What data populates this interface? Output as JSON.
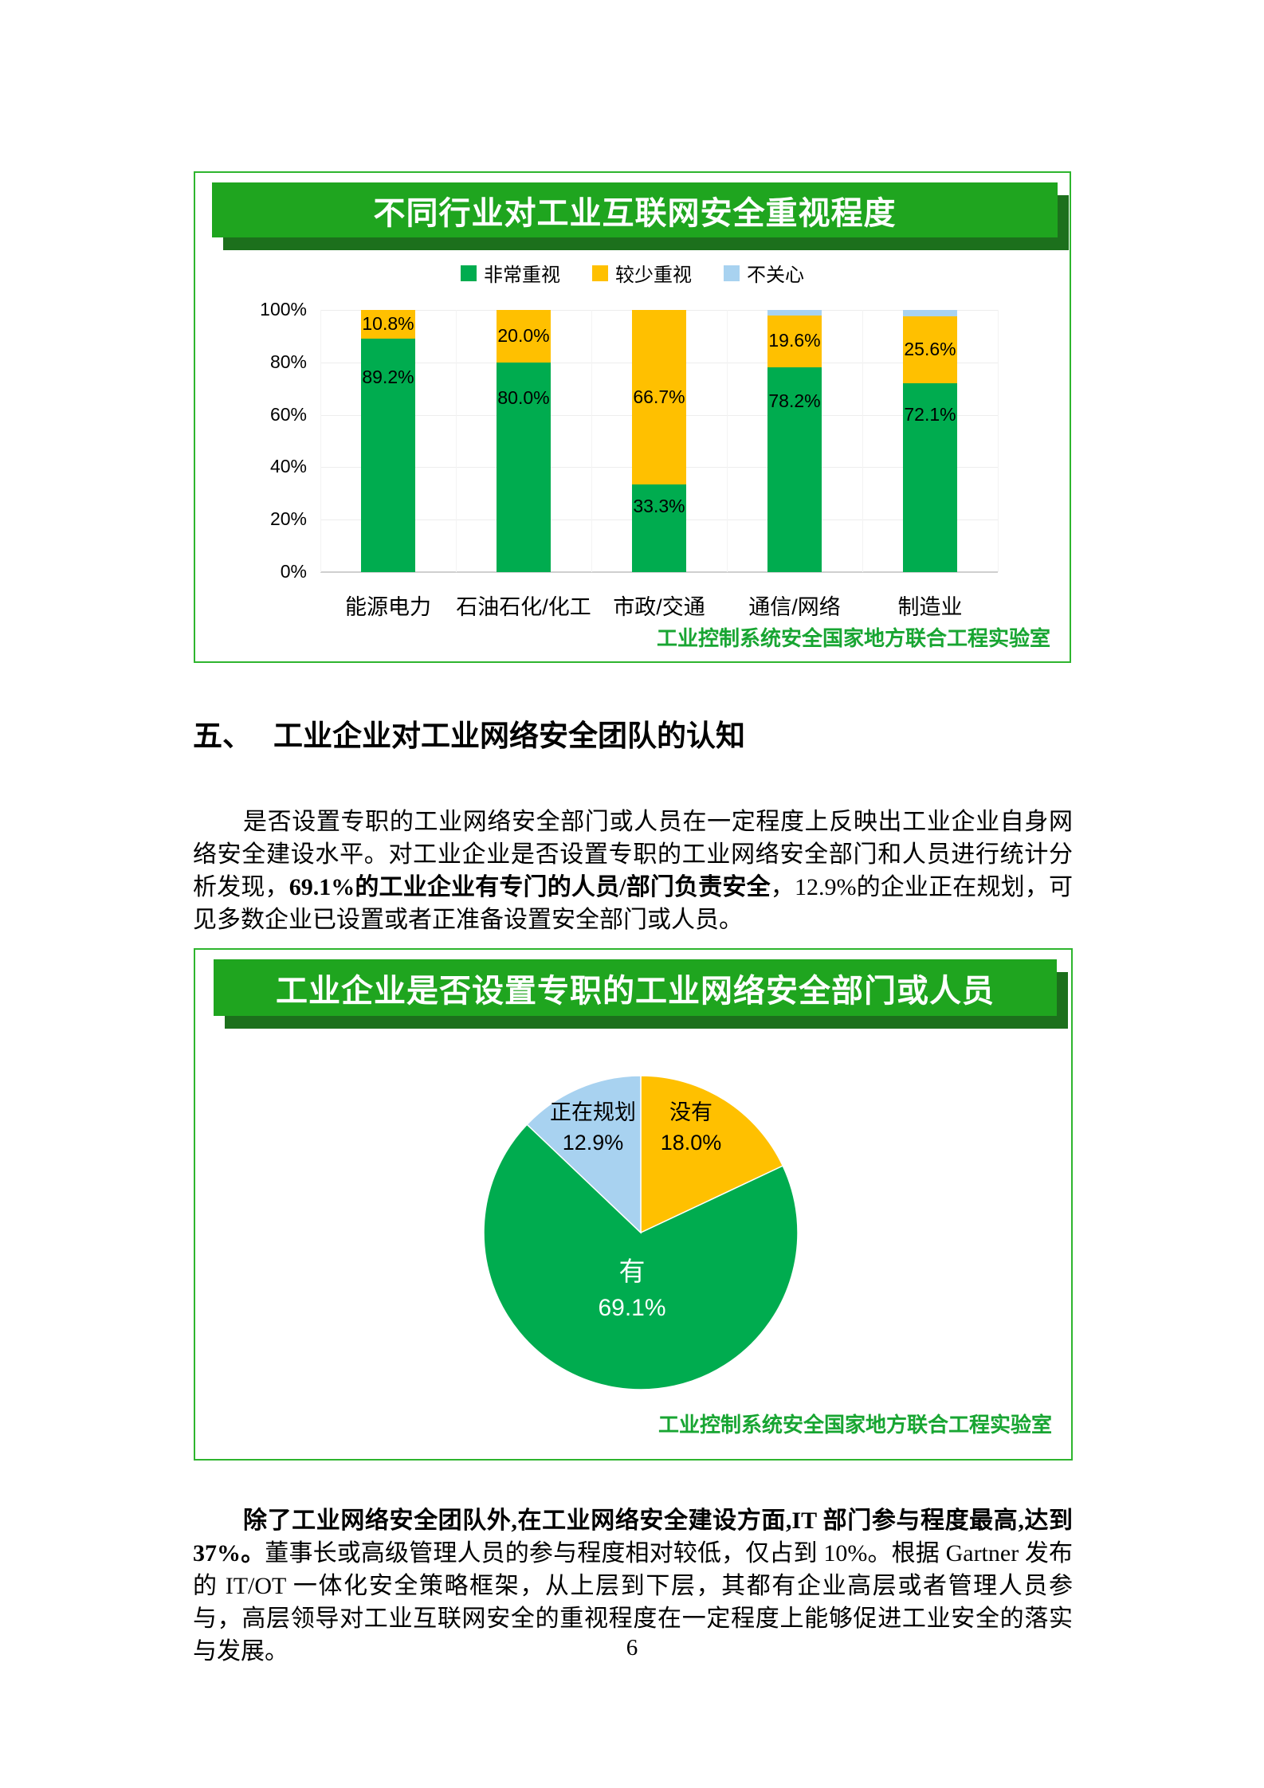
{
  "page": {
    "number": "6"
  },
  "section": {
    "number": "五、",
    "title": "工业企业对工业网络安全团队的认知"
  },
  "paragraph1": {
    "normal1": "是否设置专职的工业网络安全部门或人员在一定程度上反映出工业企业自身网络安全建设水平。对工业企业是否设置专职的工业网络安全部门和人员进行统计分析发现，",
    "bold1": "69.1%的工业企业有专门的人员/部门负责安全",
    "normal2": "，12.9%的企业正在规划，可见多数企业已设置或者正准备设置安全部门或人员。"
  },
  "paragraph2": {
    "bold1": "除了工业网络安全团队外,在工业网络安全建设方面,IT 部门参与程度最高,达到 37%。",
    "normal1": "董事长或高级管理人员的参与程度相对较低，仅占到 10%。根据 Gartner 发布的 IT/OT 一体化安全策略框架，从上层到下层，其都有企业高层或者管理人员参与，高层领导对工业互联网安全的重视程度在一定程度上能够促进工业安全的落实与发展。"
  },
  "colors": {
    "green": "#00ac4f",
    "yellow": "#ffc000",
    "blue": "#a8d2f0",
    "banner": "#1fa51f",
    "banner_shadow": "#1c701c",
    "border": "#2eb52e",
    "footer_text": "#18a532",
    "gridline": "#ededed",
    "axis": "#cfcfcf"
  },
  "chart_data": [
    {
      "type": "bar",
      "stacked": true,
      "title": "不同行业对工业互联网安全重视程度",
      "categories": [
        "能源电力",
        "石油石化/化工",
        "市政/交通",
        "通信/网络",
        "制造业"
      ],
      "series": [
        {
          "name": "非常重视",
          "color_key": "green",
          "values": [
            89.2,
            80.0,
            33.3,
            78.2,
            72.1
          ],
          "labels": [
            "89.2%",
            "80.0%",
            "33.3%",
            "78.2%",
            "72.1%"
          ]
        },
        {
          "name": "较少重视",
          "color_key": "yellow",
          "values": [
            10.8,
            20.0,
            66.7,
            19.6,
            25.6
          ],
          "labels": [
            "10.8%",
            "20.0%",
            "66.7%",
            "19.6%",
            "25.6%"
          ]
        },
        {
          "name": "不关心",
          "color_key": "blue",
          "values": [
            0,
            0,
            0,
            2.2,
            2.3
          ],
          "labels": [
            "",
            "",
            "",
            "",
            ""
          ]
        }
      ],
      "y_ticks": [
        "100%",
        "80%",
        "60%",
        "40%",
        "20%",
        "0%"
      ],
      "ylim": [
        0,
        100
      ],
      "grid": true,
      "legend_position": "top",
      "source": "工业控制系统安全国家地方联合工程实验室"
    },
    {
      "type": "pie",
      "title": "工业企业是否设置专职的工业网络安全部门或人员",
      "start_angle_deg": 0,
      "clockwise": true,
      "slices": [
        {
          "name": "没有",
          "value": 18.0,
          "label": "18.0%",
          "color_key": "yellow"
        },
        {
          "name": "有",
          "value": 69.1,
          "label": "69.1%",
          "color_key": "green"
        },
        {
          "name": "正在规划",
          "value": 12.9,
          "label": "12.9%",
          "color_key": "blue"
        }
      ],
      "source": "工业控制系统安全国家地方联合工程实验室"
    }
  ]
}
